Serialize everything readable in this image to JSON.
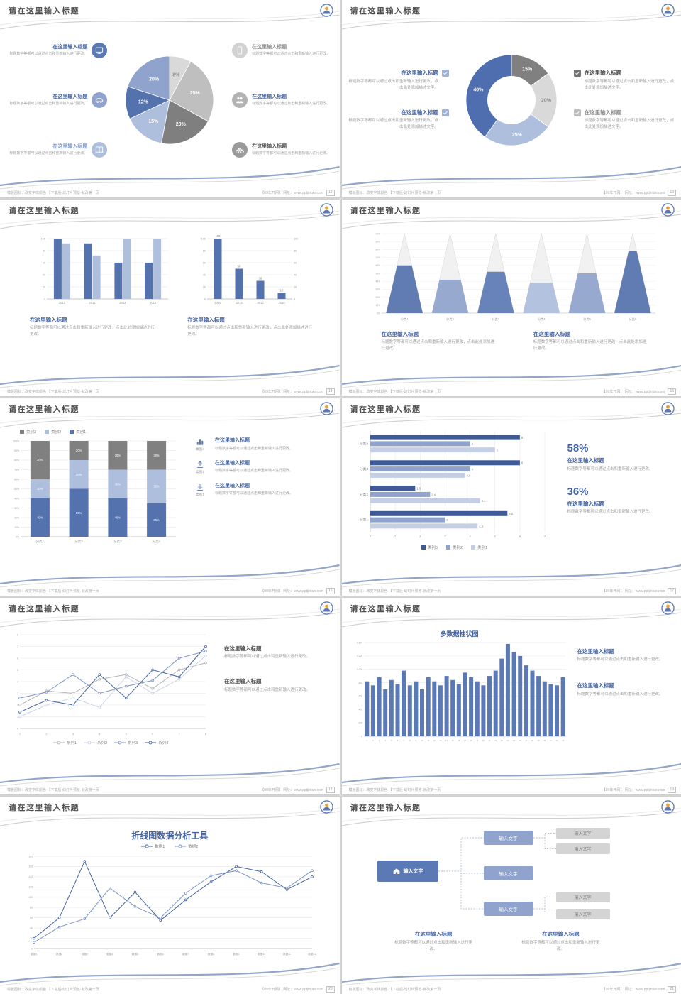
{
  "common": {
    "footer_left": "模板图标：改变字体颜色 【下载后-幻灯片预览-就改第一页",
    "footer_right": "【09年开网】 网址：www.pptjintao.com"
  },
  "theme": {
    "blue": "#5472ad",
    "mid_blue": "#8fa3cc",
    "light_blue": "#aebedd",
    "dark_blue": "#44639f",
    "gray": "#808080",
    "pale_gray": "#d9d9d9",
    "heading": "#44639f",
    "body_text": "#9f9f9f",
    "title_text": "#4d4d4d"
  },
  "slides": [
    {
      "title": "请在这里输入标题",
      "page": "12",
      "type": "pie",
      "left": [
        {
          "heading": "在这里输入标题",
          "hcolor": "#44639f",
          "body": "标题数字等都可以通过点击和重新输入进行更改。",
          "icon": "monitor",
          "icon_bg": "#5b79b4"
        },
        {
          "heading": "在这里输入标题",
          "hcolor": "#44639f",
          "body": "标题数字等都可以通过点击和重新输入进行更改。",
          "icon": "car",
          "icon_bg": "#8fa3cc"
        },
        {
          "heading": "在这里输入标题",
          "hcolor": "#7d96c5",
          "body": "标题数字等都可以通过点击和重新输入进行更改。",
          "icon": "book",
          "icon_bg": "#aebedd"
        }
      ],
      "right": [
        {
          "heading": "在这里输入标题",
          "hcolor": "#8c8c8c",
          "body": "标题数字等都可以通过点击和重新输入进行更改。",
          "icon": "phone",
          "icon_bg": "#d2d2d2"
        },
        {
          "heading": "在这里输入标题",
          "hcolor": "#44639f",
          "body": "标题数字等都可以通过点击和重新输入进行更改。",
          "icon": "people",
          "icon_bg": "#b3b3b3"
        },
        {
          "heading": "在这里输入标题",
          "hcolor": "#4d4d4d",
          "body": "标题数字等都可以通过点击和重新输入进行更改。",
          "icon": "bike",
          "icon_bg": "#9b9b9b"
        }
      ],
      "pie": {
        "slices": [
          {
            "v": 8,
            "label": "8%",
            "c": "#d9d9d9",
            "t": "#8c8c8c"
          },
          {
            "v": 25,
            "label": "25%",
            "c": "#bfbfbf",
            "t": "#ffffff"
          },
          {
            "v": 20,
            "label": "20%",
            "c": "#7f7f7f",
            "t": "#ffffff"
          },
          {
            "v": 15,
            "label": "15%",
            "c": "#aebedd",
            "t": "#ffffff"
          },
          {
            "v": 12,
            "label": "12%",
            "c": "#5472ad",
            "t": "#ffffff"
          },
          {
            "v": 20,
            "label": "20%",
            "c": "#8fa3cc",
            "t": "#ffffff"
          }
        ]
      }
    },
    {
      "title": "请在这里输入标题",
      "page": "13",
      "type": "donut",
      "left": [
        {
          "heading": "在这里输入标题",
          "hcolor": "#44639f",
          "cb": "#9fb1d6",
          "body": "标题数字等都可以通过点击和重新输入进行更改，点击此处添加描述文字。"
        },
        {
          "heading": "在这里输入标题",
          "hcolor": "#44639f",
          "cb": "#9fb1d6",
          "body": "标题数字等都可以通过点击和重新输入进行更改，点击此处添加描述文字。"
        }
      ],
      "right": [
        {
          "heading": "在这里输入标题",
          "hcolor": "#4d4d4d",
          "cb": "#737373",
          "body": "标题数字等都可以通过点击和重新输入进行更改，点击此处添加描述文字。"
        },
        {
          "heading": "在这里输入标题",
          "hcolor": "#8c8c8c",
          "cb": "#bfbfbf",
          "body": "标题数字等都可以通过点击和重新输入进行更改，点击此处添加描述文字。"
        }
      ],
      "donut": {
        "inner": 34,
        "slices": [
          {
            "v": 15,
            "label": "15%",
            "c": "#808080",
            "t": "#ffffff"
          },
          {
            "v": 20,
            "label": "20%",
            "c": "#d9d9d9",
            "t": "#8c8c8c"
          },
          {
            "v": 25,
            "label": "25%",
            "c": "#aebedd",
            "t": "#ffffff"
          },
          {
            "v": 40,
            "label": "40%",
            "c": "#4f6eb0",
            "t": "#ffffff"
          }
        ]
      }
    },
    {
      "title": "请在这里输入标题",
      "page": "14",
      "type": "dualbar",
      "chartA": {
        "cats": [
          "2010",
          "2012",
          "2014",
          "2016"
        ],
        "ymax": 100,
        "ystep": 20,
        "series": [
          {
            "c": "#5472ad",
            "v": [
              100,
              92,
              60,
              60
            ]
          },
          {
            "c": "#aebedd",
            "v": [
              92,
              72,
              100,
              100
            ]
          }
        ]
      },
      "chartB": {
        "cats": [
          "2016",
          "2014",
          "2012",
          "2010"
        ],
        "ymax": 100,
        "ystep": 20,
        "series": [
          {
            "c": "#5472ad",
            "v": [
              100,
              50,
              30,
              10
            ]
          }
        ]
      },
      "blocks": [
        {
          "heading": "在这里输入标题",
          "body": "标题数字等都可以通过点击和重新输入进行更改，点击此处添加描述进行更改。"
        },
        {
          "heading": "在这里输入标题",
          "body": "标题数字等都可以通过点击和重新输入进行更改，点击此处添加描述进行更改。"
        }
      ]
    },
    {
      "title": "请在这里输入标题",
      "page": "15",
      "type": "pyramid",
      "cats": [
        "分类1",
        "分类2",
        "分类3",
        "分类4",
        "分类5",
        "分类6"
      ],
      "fills": [
        0.6,
        0.42,
        0.52,
        0.38,
        0.5,
        0.78
      ],
      "colors": [
        "#5472ad",
        "#8fa3cc",
        "#5b79b4",
        "#aebedd",
        "#8fa3cc",
        "#5472ad"
      ],
      "blocks": [
        {
          "heading": "在这里输入标题",
          "body": "标题数字等都可以通过点击和重新输入进行更改，点击此处添加进行更改。"
        },
        {
          "heading": "在这里输入标题",
          "body": "标题数字等都可以通过点击和重新输入进行更改，点击此处添加进行更改。"
        }
      ]
    },
    {
      "title": "请在这里输入标题",
      "page": "16",
      "type": "stacked",
      "legend": [
        {
          "label": "类别3",
          "c": "#808080"
        },
        {
          "label": "类别2",
          "c": "#aebedd"
        },
        {
          "label": "类别1",
          "c": "#5472ad"
        }
      ],
      "cats": [
        "分类1",
        "分类2",
        "分类3",
        "分类4"
      ],
      "stack_colors": [
        "#5472ad",
        "#aebedd",
        "#808080"
      ],
      "stacks": [
        [
          40,
          20,
          40
        ],
        [
          50,
          30,
          20
        ],
        [
          40,
          30,
          30
        ],
        [
          35,
          35,
          30
        ]
      ],
      "items": [
        {
          "icon": "chart",
          "caption": "类别3",
          "heading": "在这里输入标题",
          "body": "标题数字等都可以通过点击和重新输入进行更改。"
        },
        {
          "icon": "upload",
          "caption": "类别2",
          "heading": "在这里输入标题",
          "body": "标题数字等都可以通过点击和重新输入进行更改。"
        },
        {
          "icon": "download",
          "caption": "类别1",
          "heading": "在这里输入标题",
          "body": "标题数字等都可以通过点击和重新输入进行更改。"
        }
      ]
    },
    {
      "title": "请在这里输入标题",
      "page": "17",
      "type": "hbar",
      "legend": [
        {
          "label": "类别3",
          "c": "#3f5a96"
        },
        {
          "label": "类别2",
          "c": "#8fa3cc"
        },
        {
          "label": "类别1",
          "c": "#c5cfe4"
        }
      ],
      "cats": [
        "分类4",
        "分类3",
        "分类2",
        "分类1"
      ],
      "values": [
        [
          6,
          4,
          5
        ],
        [
          6,
          4,
          3.8
        ],
        [
          1.8,
          2.4,
          4.4
        ],
        [
          5.5,
          3,
          4.3
        ]
      ],
      "xmax": 7,
      "stats": [
        {
          "pct": "58%",
          "heading": "在这里输入标题",
          "body": "标题数字等都可以通过点击和重新输入进行更改。"
        },
        {
          "pct": "36%",
          "heading": "在这里输入标题",
          "body": "标题数字等都可以通过点击和重新输入进行更改。"
        }
      ]
    },
    {
      "title": "请在这里输入标题",
      "page": "18",
      "type": "lines",
      "x": [
        "1",
        "2",
        "3",
        "4",
        "5",
        "6",
        "7",
        "8"
      ],
      "ymax": 8,
      "ystep": 1,
      "series": [
        {
          "name": "系列1",
          "c": "#b3b3b3",
          "v": [
            2,
            3.2,
            3,
            4.2,
            4.6,
            3.4,
            5,
            5.6
          ]
        },
        {
          "name": "系列2",
          "c": "#cdd6e8",
          "v": [
            1,
            2,
            2.6,
            1.8,
            4.4,
            3,
            4.2,
            6.2
          ]
        },
        {
          "name": "系列3",
          "c": "#7d96c5",
          "v": [
            2.6,
            3.1,
            4.6,
            3,
            3.6,
            4.1,
            6,
            6.6
          ]
        },
        {
          "name": "系列4",
          "c": "#44639f",
          "v": [
            1.4,
            2.4,
            2,
            4.6,
            2.6,
            5,
            4.4,
            7
          ]
        }
      ],
      "blocks": [
        {
          "heading": "在这里输入标题",
          "dark": true,
          "body": "标题数字等都可以通过点击和重新输入进行更改。"
        },
        {
          "heading": "在这里输入标题",
          "dark": true,
          "body": "标题数字等都可以通过点击和重新输入进行更改。"
        }
      ]
    },
    {
      "title": "请在这里输入标题",
      "page": "19",
      "type": "columns",
      "chart_title": "多数据柱状图",
      "ymax": 1400,
      "ylabels": [
        "0",
        "200",
        "400",
        "600",
        "800",
        "1,000",
        "1,200",
        "1,400"
      ],
      "values": [
        820,
        760,
        880,
        700,
        840,
        780,
        980,
        760,
        820,
        700,
        880,
        820,
        760,
        900,
        840,
        780,
        950,
        880,
        820,
        760,
        900,
        980,
        1160,
        1380,
        1260,
        1200,
        1060,
        980,
        900,
        820,
        780,
        760,
        880
      ],
      "blocks": [
        {
          "heading": "在这里输入标题",
          "body": "标题数字等都可以通过点击和重新输入进行更改。"
        },
        {
          "heading": "在这里输入标题",
          "body": "标题数字等都可以通过点击和重新输入进行更改。"
        }
      ]
    },
    {
      "title": "请在这里输入标题",
      "page": "20",
      "type": "linetitle",
      "chart_title": "折线图数据分析工具",
      "legend": [
        {
          "name": "数据1",
          "c": "#44639f"
        },
        {
          "name": "数据2",
          "c": "#7d96c5"
        }
      ],
      "x": [
        "数据1",
        "数据2",
        "数据3",
        "数据4",
        "数据5",
        "数据6",
        "数据7",
        "数据8",
        "数据9",
        "数据10",
        "数据11",
        "数据12"
      ],
      "ymax": 180,
      "ystep": 20,
      "series": [
        {
          "name": "数据1",
          "c": "#44639f",
          "v": [
            20,
            60,
            170,
            60,
            110,
            55,
            95,
            130,
            160,
            150,
            115,
            140
          ]
        },
        {
          "name": "数据2",
          "c": "#7d96c5",
          "v": [
            12,
            42,
            58,
            118,
            82,
            60,
            108,
            142,
            152,
            128,
            118,
            152
          ]
        }
      ]
    },
    {
      "title": "请在这里输入标题",
      "page": "21",
      "type": "flow",
      "root": {
        "label": "输入文字"
      },
      "mids": [
        "输入文字",
        "输入文字",
        "输入文字"
      ],
      "rights": [
        "输入文字",
        "输入文字",
        "输入文字",
        "输入文字"
      ],
      "blocks": [
        {
          "heading": "在这里输入标题",
          "body": "标题数字等都可以通过点击和重新输入进行更改。"
        },
        {
          "heading": "在这里输入标题",
          "body": "标题数字等都可以通过点击和重新输入进行更改。"
        }
      ]
    }
  ]
}
